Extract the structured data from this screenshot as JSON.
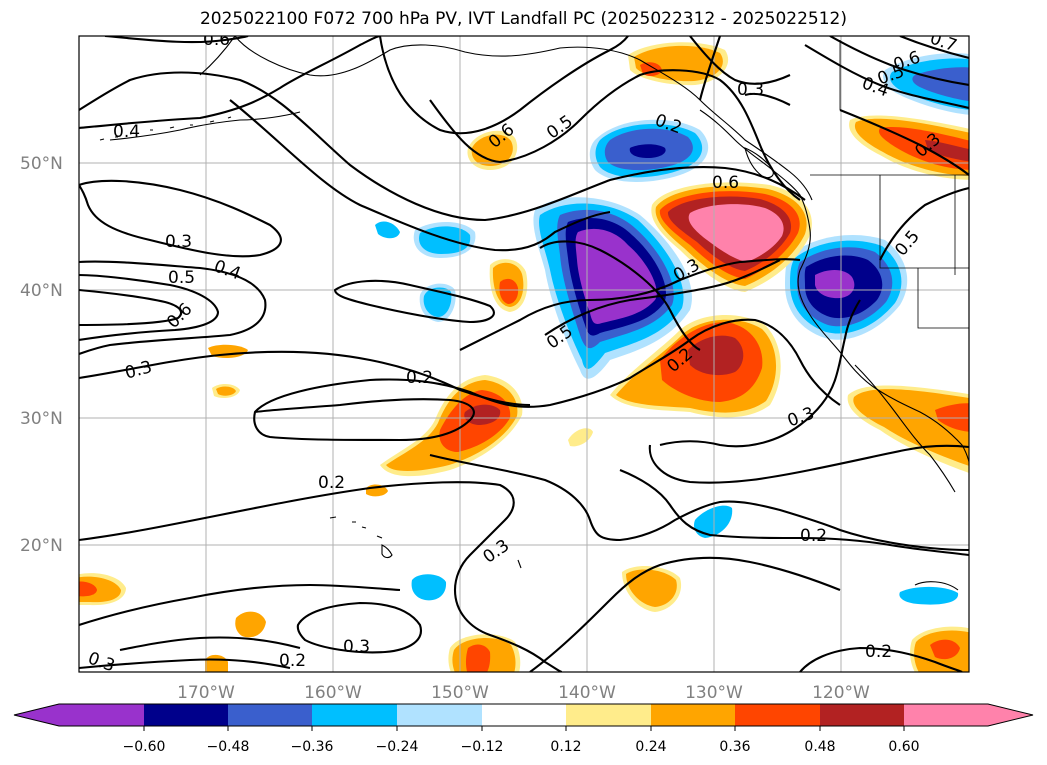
{
  "title": "2025022100 F072 700 hPa PV, IVT Landfall PC (2025022312 - 2025022512)",
  "lat_labels": [
    "50°N",
    "40°N",
    "30°N",
    "20°N"
  ],
  "lon_labels": [
    "170°W",
    "160°W",
    "150°W",
    "140°W",
    "130°W",
    "120°W"
  ],
  "colorbar": {
    "colors": [
      "#9932cc",
      "#00008b",
      "#3a5fcd",
      "#00bfff",
      "#b0e2ff",
      "#ffffff",
      "#ffec8b",
      "#ffa500",
      "#ff4500",
      "#b22222",
      "#ff82ab"
    ],
    "tick_labels": [
      "−0.60",
      "−0.48",
      "−0.36",
      "−0.24",
      "−0.12",
      "0.12",
      "0.24",
      "0.36",
      "0.48",
      "0.60"
    ]
  },
  "contour_labels": [
    "0.6",
    "0.4",
    "0.3",
    "0.5",
    "0.4",
    "0.6",
    "0.3",
    "0.2",
    "0.2",
    "0.3",
    "0.3",
    "0.2",
    "0.6",
    "0.5",
    "0.6",
    "0.3",
    "0.5",
    "0.3",
    "0.2",
    "0.3",
    "0.2",
    "0.2",
    "0.6",
    "0.5",
    "0.4",
    "0.7",
    "0.3",
    "0.5",
    "0.3",
    "0.2"
  ],
  "chart_data": {
    "type": "heatmap",
    "title": "2025022100 F072 700 hPa PV, IVT Landfall PC (2025022312 - 2025022512)",
    "x_ticks": [
      "170°W",
      "160°W",
      "150°W",
      "140°W",
      "130°W",
      "120°W"
    ],
    "y_ticks": [
      "50°N",
      "40°N",
      "30°N",
      "20°N"
    ],
    "lon_range": [
      -180,
      -110
    ],
    "lat_range": [
      10,
      60
    ],
    "grid": true,
    "colorbar_levels": [
      -0.6,
      -0.48,
      -0.36,
      -0.24,
      -0.12,
      0.12,
      0.24,
      0.36,
      0.48,
      0.6
    ],
    "contour_levels": [
      0.2,
      0.3,
      0.4,
      0.5,
      0.6,
      0.7
    ]
  }
}
